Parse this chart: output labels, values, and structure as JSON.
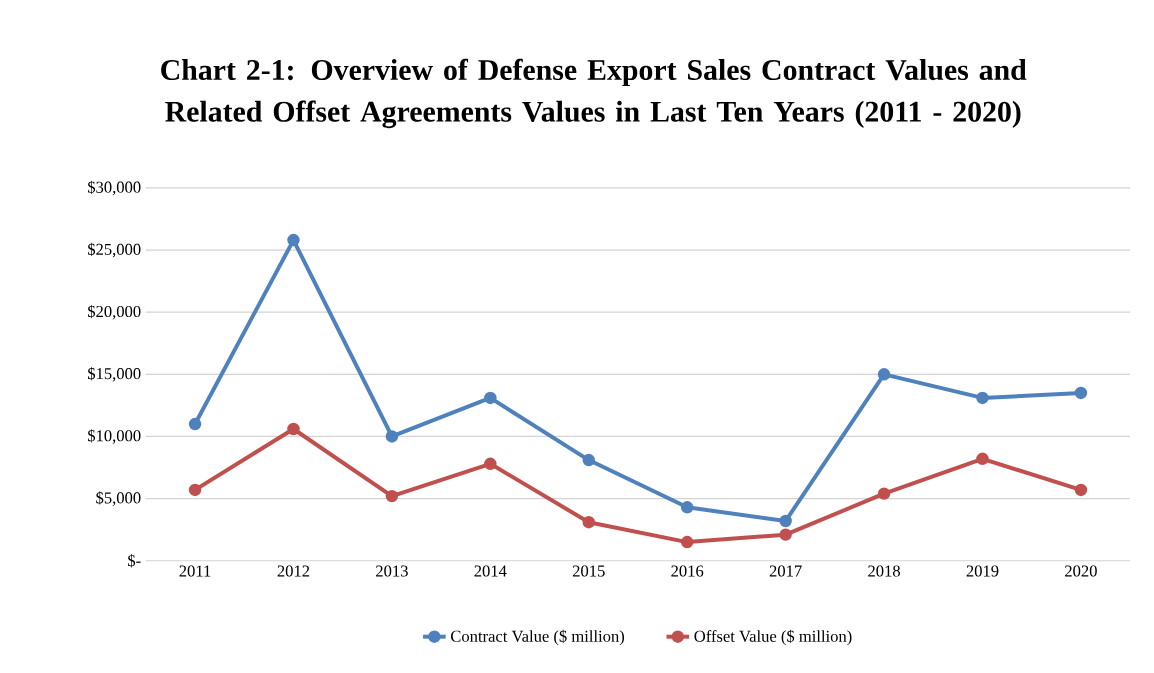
{
  "chart_data": {
    "type": "line",
    "title": "Chart 2-1: Overview of Defense Export Sales Contract Values and Related Offset Agreements Values in Last Ten Years (2011 - 2020)",
    "categories": [
      "2011",
      "2012",
      "2013",
      "2014",
      "2015",
      "2016",
      "2017",
      "2018",
      "2019",
      "2020"
    ],
    "series": [
      {
        "name": "Contract Value ($ million)",
        "color": "#4f81bd",
        "values": [
          11000,
          25800,
          10000,
          13100,
          8100,
          4300,
          3200,
          15000,
          13100,
          13500
        ]
      },
      {
        "name": "Offset Value ($ million)",
        "color": "#c0504d",
        "values": [
          5700,
          10600,
          5200,
          7800,
          3100,
          1500,
          2100,
          5400,
          8200,
          5700
        ]
      }
    ],
    "ylim": [
      0,
      30000
    ],
    "yticks": [
      {
        "value": 0,
        "label": "$-"
      },
      {
        "value": 5000,
        "label": "$5,000"
      },
      {
        "value": 10000,
        "label": "$10,000"
      },
      {
        "value": 15000,
        "label": "$15,000"
      },
      {
        "value": 20000,
        "label": "$20,000"
      },
      {
        "value": 25000,
        "label": "$25,000"
      },
      {
        "value": 30000,
        "label": "$30,000"
      }
    ],
    "grid": "y",
    "legend": "bottom",
    "marker": "circle",
    "line_style": "solid"
  }
}
